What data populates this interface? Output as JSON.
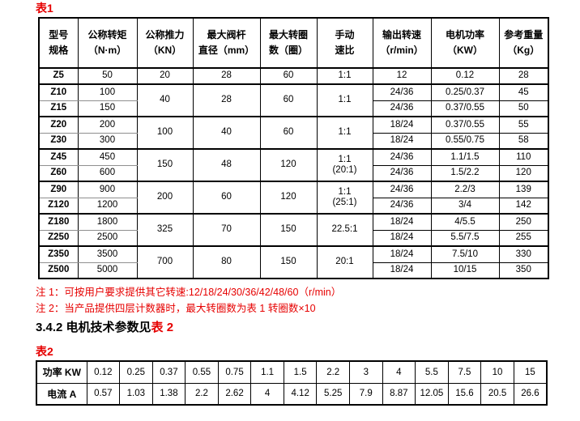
{
  "colors": {
    "accent_red": "#e60000",
    "border_black": "#000000",
    "pair_divider_gray": "#8f8f8f"
  },
  "table1": {
    "label": "表1",
    "headers": [
      "型号\n规格",
      "公称转矩\n（N·m）",
      "公称推力\n（KN）",
      "最大阀杆\n直径（mm）",
      "最大转圈\n数（圈）",
      "手动\n速比",
      "输出转速\n（r/min）",
      "电机功率\n（KW）",
      "参考重量\n（Kg）"
    ],
    "rows": [
      {
        "model": "Z5",
        "torque": "50",
        "thrust": "20",
        "stem_dia": "28",
        "max_turns": "60",
        "manual_ratio": "1:1",
        "output_speed": "12",
        "motor_power": "0.12",
        "weight": "28",
        "span": 1,
        "group_start": true
      },
      {
        "model": "Z10",
        "torque": "100",
        "thrust": "40",
        "stem_dia": "28",
        "max_turns": "60",
        "manual_ratio": "1:1",
        "output_speed": "24/36",
        "motor_power": "0.25/0.37",
        "weight": "45",
        "span": 2,
        "group_start": true
      },
      {
        "model": "Z15",
        "torque": "150",
        "output_speed": "24/36",
        "motor_power": "0.37/0.55",
        "weight": "50",
        "span": 0,
        "group_start": false
      },
      {
        "model": "Z20",
        "torque": "200",
        "thrust": "100",
        "stem_dia": "40",
        "max_turns": "60",
        "manual_ratio": "1:1",
        "output_speed": "18/24",
        "motor_power": "0.37/0.55",
        "weight": "55",
        "span": 2,
        "group_start": true
      },
      {
        "model": "Z30",
        "torque": "300",
        "output_speed": "18/24",
        "motor_power": "0.55/0.75",
        "weight": "58",
        "span": 0,
        "group_start": false
      },
      {
        "model": "Z45",
        "torque": "450",
        "thrust": "150",
        "stem_dia": "48",
        "max_turns": "120",
        "manual_ratio": "1:1\n(20:1)",
        "output_speed": "24/36",
        "motor_power": "1.1/1.5",
        "weight": "110",
        "span": 2,
        "group_start": true
      },
      {
        "model": "Z60",
        "torque": "600",
        "output_speed": "24/36",
        "motor_power": "1.5/2.2",
        "weight": "120",
        "span": 0,
        "group_start": false
      },
      {
        "model": "Z90",
        "torque": "900",
        "thrust": "200",
        "stem_dia": "60",
        "max_turns": "120",
        "manual_ratio": "1:1\n(25:1)",
        "output_speed": "24/36",
        "motor_power": "2.2/3",
        "weight": "139",
        "span": 2,
        "group_start": true
      },
      {
        "model": "Z120",
        "torque": "1200",
        "output_speed": "24/36",
        "motor_power": "3/4",
        "weight": "142",
        "span": 0,
        "group_start": false
      },
      {
        "model": "Z180",
        "torque": "1800",
        "thrust": "325",
        "stem_dia": "70",
        "max_turns": "150",
        "manual_ratio": "22.5:1",
        "output_speed": "18/24",
        "motor_power": "4/5.5",
        "weight": "250",
        "span": 2,
        "group_start": true
      },
      {
        "model": "Z250",
        "torque": "2500",
        "output_speed": "18/24",
        "motor_power": "5.5/7.5",
        "weight": "255",
        "span": 0,
        "group_start": false
      },
      {
        "model": "Z350",
        "torque": "3500",
        "thrust": "700",
        "stem_dia": "80",
        "max_turns": "150",
        "manual_ratio": "20:1",
        "output_speed": "18/24",
        "motor_power": "7.5/10",
        "weight": "330",
        "span": 2,
        "group_start": true
      },
      {
        "model": "Z500",
        "torque": "5000",
        "output_speed": "18/24",
        "motor_power": "10/15",
        "weight": "350",
        "span": 0,
        "group_start": false
      }
    ]
  },
  "notes": [
    "注 1：可按用户要求提供其它转速:12/18/24/30/36/42/48/60（r/min）",
    "注 2：当产品提供四层计数器时，最大转圈数为表 1 转圈数×10"
  ],
  "section_heading": {
    "text": "3.4.2 电机技术参数见",
    "table_ref": "表 2"
  },
  "table2": {
    "label": "表2",
    "row_labels": [
      "功率 KW",
      "电流 A"
    ],
    "power_kw": [
      "0.12",
      "0.25",
      "0.37",
      "0.55",
      "0.75",
      "1.1",
      "1.5",
      "2.2",
      "3",
      "4",
      "5.5",
      "7.5",
      "10",
      "15"
    ],
    "current_a": [
      "0.57",
      "1.03",
      "1.38",
      "2.2",
      "2.62",
      "4",
      "4.12",
      "5.25",
      "7.9",
      "8.87",
      "12.05",
      "15.6",
      "20.5",
      "26.6"
    ]
  }
}
